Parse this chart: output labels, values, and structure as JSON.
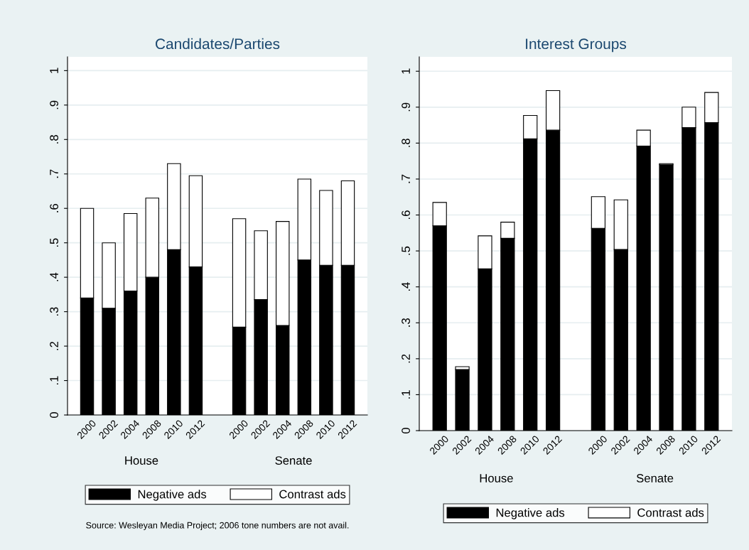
{
  "chart_data": [
    {
      "type": "bar",
      "title": "Candidates/Parties",
      "stacked": true,
      "grid": "y",
      "legend": "bottom",
      "categories": [
        "2000",
        "2002",
        "2004",
        "2008",
        "2010",
        "2012",
        null,
        "2000",
        "2002",
        "2004",
        "2008",
        "2010",
        "2012"
      ],
      "series": [
        {
          "name": "Negative ads",
          "color": "#000000",
          "values": [
            0.34,
            0.31,
            0.36,
            0.4,
            0.48,
            0.43,
            null,
            0.255,
            0.335,
            0.26,
            0.45,
            0.435,
            0.435
          ]
        },
        {
          "name": "Contrast ads",
          "color": "#ffffff",
          "values": [
            0.26,
            0.19,
            0.225,
            0.23,
            0.25,
            0.265,
            null,
            0.315,
            0.2,
            0.302,
            0.235,
            0.217,
            0.245
          ]
        }
      ],
      "ylim": [
        0,
        1.04
      ],
      "yticks": [
        {
          "value": 0,
          "label": "0"
        },
        {
          "value": 0.1,
          "label": ".1"
        },
        {
          "value": 0.2,
          "label": ".2"
        },
        {
          "value": 0.3,
          "label": ".3"
        },
        {
          "value": 0.4,
          "label": ".4"
        },
        {
          "value": 0.5,
          "label": ".5"
        },
        {
          "value": 0.6,
          "label": ".6"
        },
        {
          "value": 0.7,
          "label": ".7"
        },
        {
          "value": 0.8,
          "label": ".8"
        },
        {
          "value": 0.9,
          "label": ".9"
        },
        {
          "value": 1,
          "label": "1"
        }
      ],
      "annotations": [
        "House",
        "Senate",
        "Source: Wesleyan Media Project; 2006 tone numbers are not avail."
      ]
    },
    {
      "type": "bar",
      "title": "Interest Groups",
      "stacked": true,
      "grid": "y",
      "legend": "bottom",
      "categories": [
        "2000",
        "2002",
        "2004",
        "2008",
        "2010",
        "2012",
        null,
        "2000",
        "2002",
        "2004",
        "2008",
        "2010",
        "2012"
      ],
      "series": [
        {
          "name": "Negative ads",
          "color": "#000000",
          "values": [
            0.57,
            0.17,
            0.45,
            0.535,
            0.812,
            0.836,
            null,
            0.563,
            0.504,
            0.792,
            0.74,
            0.843,
            0.857
          ]
        },
        {
          "name": "Contrast ads",
          "color": "#ffffff",
          "values": [
            0.065,
            0.008,
            0.092,
            0.045,
            0.065,
            0.11,
            null,
            0.088,
            0.138,
            0.044,
            0.003,
            0.057,
            0.084
          ]
        }
      ],
      "ylim": [
        0,
        1.04
      ],
      "yticks": [
        {
          "value": 0,
          "label": "0"
        },
        {
          "value": 0.1,
          "label": ".1"
        },
        {
          "value": 0.2,
          "label": ".2"
        },
        {
          "value": 0.3,
          "label": ".3"
        },
        {
          "value": 0.4,
          "label": ".4"
        },
        {
          "value": 0.5,
          "label": ".5"
        },
        {
          "value": 0.6,
          "label": ".6"
        },
        {
          "value": 0.7,
          "label": ".7"
        },
        {
          "value": 0.8,
          "label": ".8"
        },
        {
          "value": 0.9,
          "label": ".9"
        },
        {
          "value": 1,
          "label": "1"
        }
      ],
      "annotations": [
        "House",
        "Senate"
      ]
    }
  ]
}
